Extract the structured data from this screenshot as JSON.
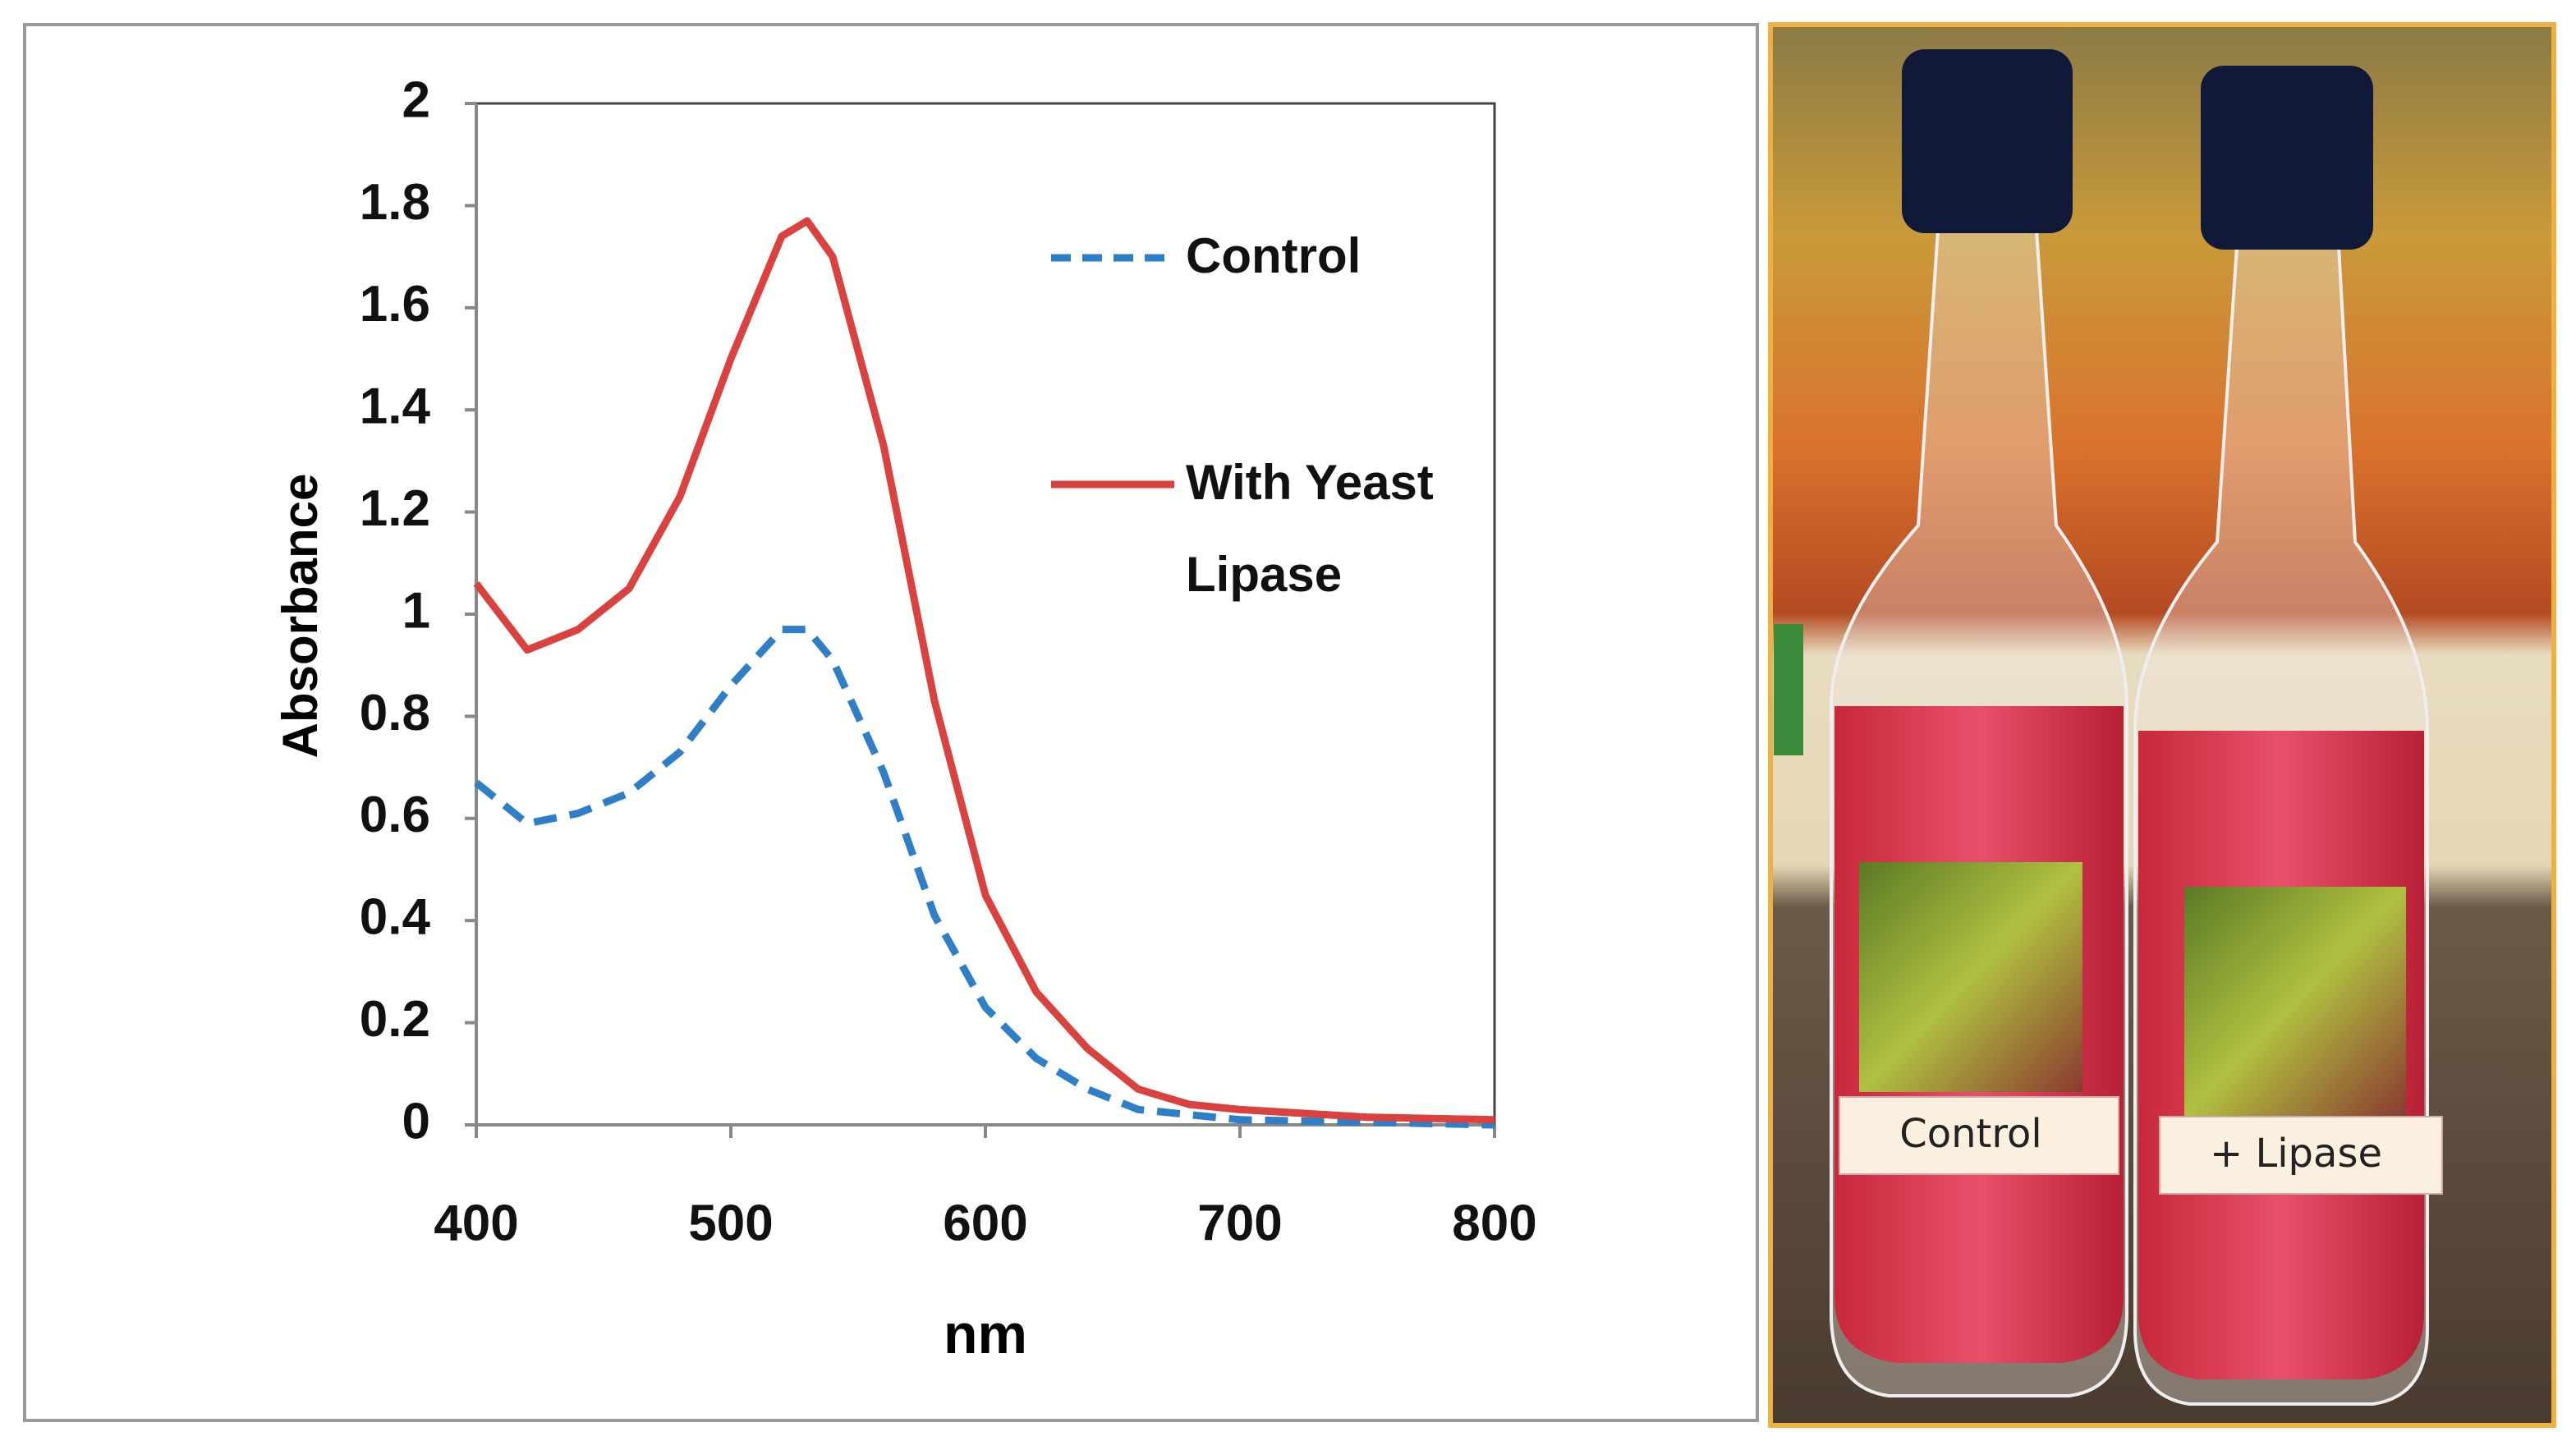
{
  "chart_data": {
    "type": "line",
    "x_label": "nm",
    "y_label": "Absorbance",
    "x": [
      400,
      420,
      440,
      460,
      480,
      500,
      520,
      530,
      540,
      560,
      580,
      600,
      620,
      640,
      660,
      680,
      700,
      750,
      800
    ],
    "series": [
      {
        "name": "Control",
        "color": "#2e7fc8",
        "style": "dashed",
        "values": [
          0.67,
          0.59,
          0.61,
          0.65,
          0.73,
          0.86,
          0.97,
          0.97,
          0.91,
          0.69,
          0.41,
          0.23,
          0.13,
          0.07,
          0.03,
          0.02,
          0.01,
          0.005,
          0
        ]
      },
      {
        "name": "With Yeast Lipase",
        "color": "#d9423f",
        "style": "solid",
        "values": [
          1.06,
          0.93,
          0.97,
          1.05,
          1.23,
          1.5,
          1.74,
          1.77,
          1.7,
          1.33,
          0.83,
          0.45,
          0.26,
          0.15,
          0.07,
          0.04,
          0.03,
          0.015,
          0.01
        ]
      }
    ],
    "xlim": [
      400,
      800
    ],
    "xticks": [
      400,
      500,
      600,
      700,
      800
    ],
    "ylim": [
      0,
      2
    ],
    "yticks": [
      0,
      0.2,
      0.4,
      0.6,
      0.8,
      1,
      1.2,
      1.4,
      1.6,
      1.8,
      2
    ],
    "grid": false,
    "legend": "upper right"
  },
  "photo": {
    "labels": [
      "Control",
      "+ Lipase"
    ]
  }
}
